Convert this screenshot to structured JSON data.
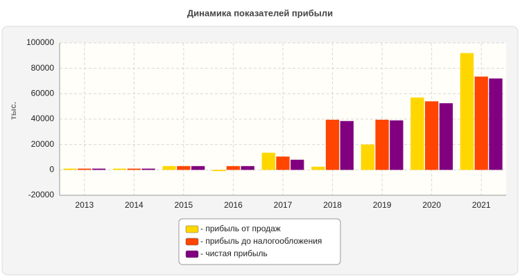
{
  "chart_data": {
    "type": "bar",
    "title": "Динамика показателей прибыли",
    "y_label": "тыс.",
    "categories": [
      "2013",
      "2014",
      "2015",
      "2016",
      "2017",
      "2018",
      "2019",
      "2020",
      "2021"
    ],
    "series": [
      {
        "name": "- прибыль от продаж",
        "color": "#ffd700",
        "values": [
          1000,
          1000,
          3000,
          -1000,
          13500,
          2500,
          20000,
          57000,
          92000
        ]
      },
      {
        "name": "- прибыль до налогообложения",
        "color": "#ff4500",
        "values": [
          1000,
          1000,
          3000,
          3000,
          10500,
          39500,
          39500,
          54000,
          73500
        ]
      },
      {
        "name": "- чистая прибыль",
        "color": "#800080",
        "values": [
          1000,
          1000,
          3000,
          3000,
          8000,
          38500,
          39000,
          52500,
          72000
        ]
      }
    ],
    "ylim": [
      -20000,
      100000
    ],
    "yticks": [
      -20000,
      0,
      20000,
      40000,
      60000,
      80000,
      100000
    ],
    "grid": true
  }
}
